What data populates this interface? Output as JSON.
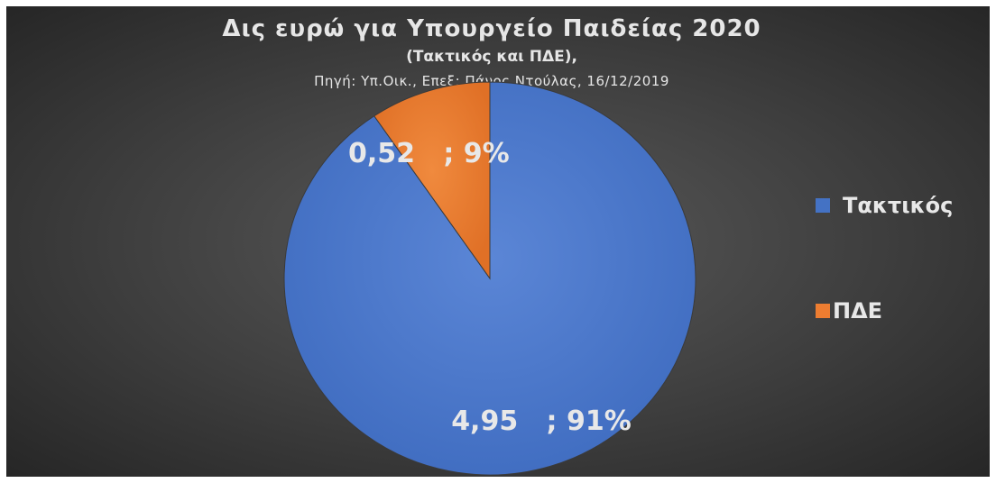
{
  "chart_data": {
    "type": "pie",
    "title": "Δις ευρώ για Υπουργείο Παιδείας 2020",
    "subtitle": "(Τακτικός και ΠΔΕ),",
    "source": "Πηγή: Υπ.Οικ., Επεξ: Πάνος Ντούλας, 16/12/2019",
    "legend_position": "right",
    "slices": [
      {
        "label": "Τακτικός",
        "value": 4.95,
        "percent": 91,
        "data_label": "4,95   ; 91%",
        "color": "#4472c4"
      },
      {
        "label": "ΠΔΕ",
        "value": 0.52,
        "percent": 9,
        "data_label": "0,52   ; 9%",
        "color": "#ed7d31"
      }
    ]
  }
}
